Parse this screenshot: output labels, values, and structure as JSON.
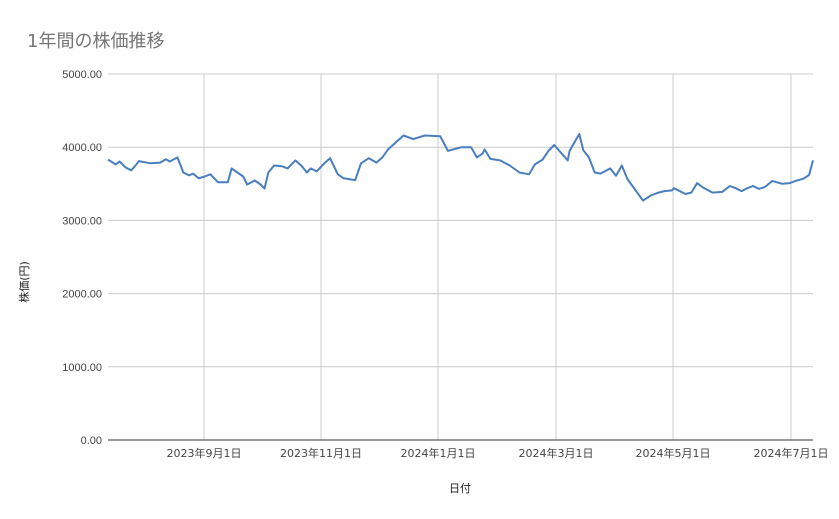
{
  "chart": {
    "title": "1年間の株価推移",
    "xlabel": "日付",
    "ylabel": "株価(円)"
  },
  "chart_data": {
    "type": "line",
    "title": "1年間の株価推移",
    "xlabel": "日付",
    "ylabel": "株価(円)",
    "ylim": [
      0,
      5000
    ],
    "y_ticks": [
      "0.00",
      "1000.00",
      "2000.00",
      "3000.00",
      "4000.00",
      "5000.00"
    ],
    "x_ticks": [
      "2023年9月1日",
      "2023年11月1日",
      "2024年1月1日",
      "2024年3月1日",
      "2024年5月1日",
      "2024年7月1日"
    ],
    "x_range": [
      "2023-07-13",
      "2024-07-12"
    ],
    "grid": true,
    "legend": "none",
    "series": [
      {
        "name": "株価",
        "color": "#4a7ebf",
        "x": [
          "2023-07-13",
          "2023-07-17",
          "2023-07-19",
          "2023-07-22",
          "2023-07-25",
          "2023-07-27",
          "2023-07-29",
          "2023-08-04",
          "2023-08-09",
          "2023-08-12",
          "2023-08-14",
          "2023-08-18",
          "2023-08-21",
          "2023-08-24",
          "2023-08-26",
          "2023-08-29",
          "2023-09-01",
          "2023-09-04",
          "2023-09-08",
          "2023-09-13",
          "2023-09-15",
          "2023-09-18",
          "2023-09-21",
          "2023-09-23",
          "2023-09-27",
          "2023-09-30",
          "2023-10-02",
          "2023-10-04",
          "2023-10-07",
          "2023-10-11",
          "2023-10-14",
          "2023-10-16",
          "2023-10-18",
          "2023-10-21",
          "2023-10-24",
          "2023-10-26",
          "2023-10-29",
          "2023-11-02",
          "2023-11-05",
          "2023-11-09",
          "2023-11-12",
          "2023-11-18",
          "2023-11-21",
          "2023-11-25",
          "2023-11-29",
          "2023-12-02",
          "2023-12-05",
          "2023-12-09",
          "2023-12-13",
          "2023-12-18",
          "2023-12-24",
          "2024-01-01",
          "2024-01-05",
          "2024-01-12",
          "2024-01-17",
          "2024-01-20",
          "2024-01-23",
          "2024-01-24",
          "2024-01-27",
          "2024-02-01",
          "2024-02-06",
          "2024-02-11",
          "2024-02-16",
          "2024-02-19",
          "2024-02-23",
          "2024-02-26",
          "2024-02-29",
          "2024-03-04",
          "2024-03-07",
          "2024-03-08",
          "2024-03-11",
          "2024-03-13",
          "2024-03-15",
          "2024-03-18",
          "2024-03-21",
          "2024-03-24",
          "2024-03-29",
          "2024-04-01",
          "2024-04-04",
          "2024-04-07",
          "2024-04-09",
          "2024-04-12",
          "2024-04-15",
          "2024-04-19",
          "2024-04-23",
          "2024-04-26",
          "2024-04-30",
          "2024-05-01",
          "2024-05-07",
          "2024-05-10",
          "2024-05-13",
          "2024-05-16",
          "2024-05-21",
          "2024-05-26",
          "2024-05-30",
          "2024-06-02",
          "2024-06-05",
          "2024-06-08",
          "2024-06-11",
          "2024-06-14",
          "2024-06-17",
          "2024-06-21",
          "2024-06-26",
          "2024-06-30",
          "2024-07-03",
          "2024-07-07",
          "2024-07-10",
          "2024-07-12"
        ],
        "values": [
          3830,
          3765,
          3805,
          3725,
          3685,
          3740,
          3810,
          3780,
          3790,
          3835,
          3805,
          3860,
          3655,
          3615,
          3640,
          3575,
          3600,
          3630,
          3520,
          3520,
          3710,
          3655,
          3600,
          3490,
          3545,
          3490,
          3435,
          3655,
          3750,
          3740,
          3710,
          3765,
          3820,
          3750,
          3655,
          3710,
          3670,
          3780,
          3850,
          3630,
          3575,
          3550,
          3780,
          3850,
          3790,
          3860,
          3970,
          4065,
          4160,
          4110,
          4160,
          4150,
          3950,
          4000,
          4000,
          3860,
          3915,
          3970,
          3840,
          3820,
          3750,
          3655,
          3630,
          3765,
          3830,
          3950,
          4030,
          3910,
          3820,
          3950,
          4090,
          4180,
          3960,
          3860,
          3655,
          3640,
          3710,
          3610,
          3750,
          3560,
          3490,
          3380,
          3270,
          3340,
          3380,
          3400,
          3410,
          3440,
          3360,
          3380,
          3510,
          3450,
          3380,
          3390,
          3470,
          3440,
          3400,
          3440,
          3470,
          3430,
          3455,
          3540,
          3500,
          3510,
          3540,
          3570,
          3620,
          3820
        ]
      }
    ]
  }
}
